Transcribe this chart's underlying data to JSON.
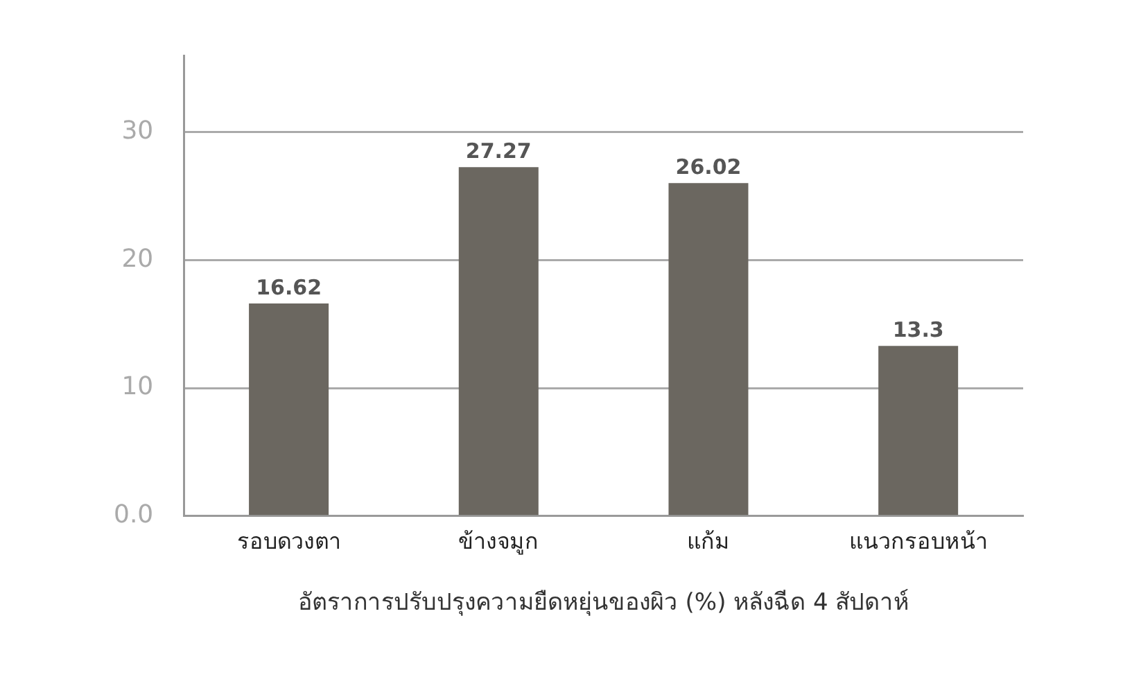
{
  "chart_data": {
    "type": "bar",
    "xlabel": "อัตราการปรับปรุงความยืดหยุ่นของผิว (%) หลังฉีด 4 สัปดาห์",
    "categories": [
      "รอบดวงตา",
      "ข้างจมูก",
      "แก้ม",
      "แนวกรอบหน้า"
    ],
    "values": [
      16.62,
      27.27,
      26.02,
      13.3
    ],
    "color": "#6b6760",
    "ylim": [
      0,
      36
    ],
    "yticks": [
      {
        "value": 0,
        "label": "0.0"
      },
      10,
      20,
      30
    ],
    "grid": "y",
    "data_labels": true,
    "legend": false
  }
}
